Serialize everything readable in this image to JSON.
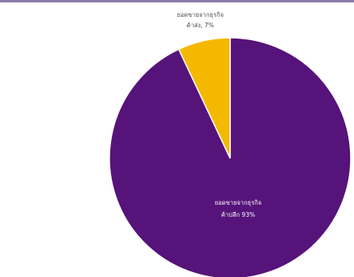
{
  "chart_data": {
    "type": "pie",
    "title": "",
    "slices": [
      {
        "label_line1": "ยอดขายจากธุรกิจ",
        "label_line2": "ค้าปลีก 93%",
        "value": 93,
        "color": "#56137a"
      },
      {
        "label_line1": "ยอดขายจากธุรกิจ",
        "label_line2": "ค้าส่ง, 7%",
        "value": 7,
        "color": "#f5b800"
      }
    ]
  },
  "colors": {
    "top_rule": "#8c7aa8",
    "outer_label_text": "#4a4a4a",
    "inner_label_text": "#ffffff",
    "separator": "#ffffff"
  }
}
